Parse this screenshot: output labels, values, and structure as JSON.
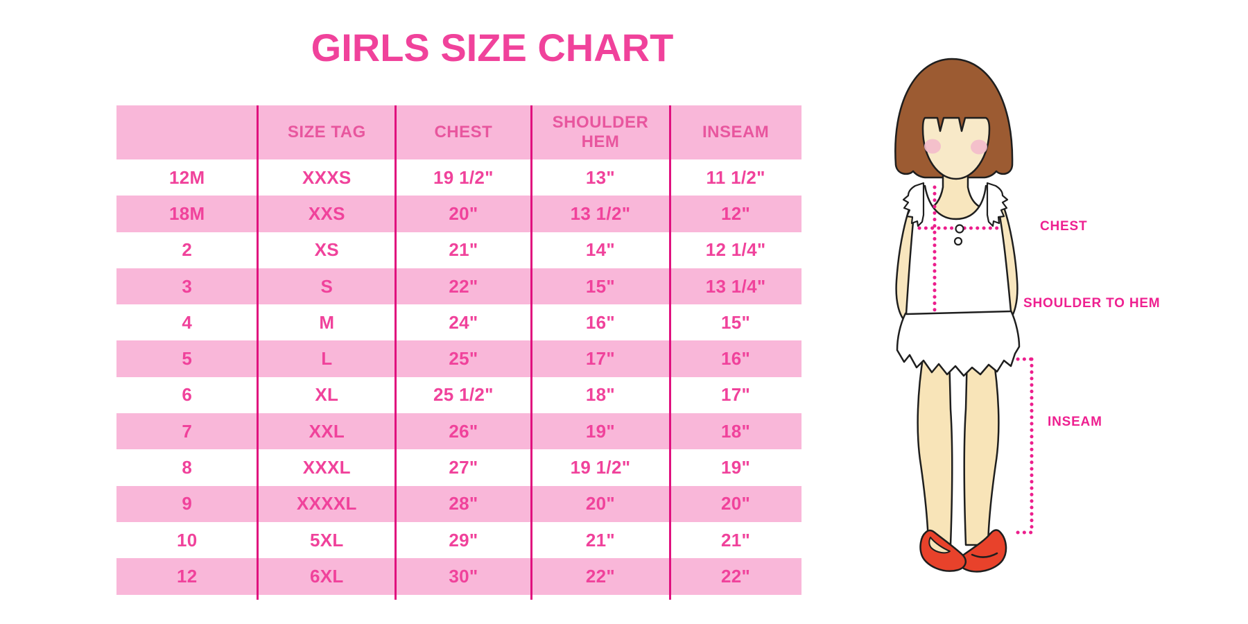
{
  "title": "GIRLS SIZE CHART",
  "chart_data": {
    "type": "table",
    "title": "GIRLS SIZE CHART",
    "columns": [
      "",
      "SIZE TAG",
      "CHEST",
      "SHOULDER HEM",
      "INSEAM"
    ],
    "rows": [
      [
        "12M",
        "XXXS",
        "19 1/2\"",
        "13\"",
        "11 1/2\""
      ],
      [
        "18M",
        "XXS",
        "20\"",
        "13 1/2\"",
        "12\""
      ],
      [
        "2",
        "XS",
        "21\"",
        "14\"",
        "12 1/4\""
      ],
      [
        "3",
        "S",
        "22\"",
        "15\"",
        "13 1/4\""
      ],
      [
        "4",
        "M",
        "24\"",
        "16\"",
        "15\""
      ],
      [
        "5",
        "L",
        "25\"",
        "17\"",
        "16\""
      ],
      [
        "6",
        "XL",
        "25 1/2\"",
        "18\"",
        "17\""
      ],
      [
        "7",
        "XXL",
        "26\"",
        "19\"",
        "18\""
      ],
      [
        "8",
        "XXXL",
        "27\"",
        "19 1/2\"",
        "19\""
      ],
      [
        "9",
        "XXXXL",
        "28\"",
        "20\"",
        "20\""
      ],
      [
        "10",
        "5XL",
        "29\"",
        "21\"",
        "21\""
      ],
      [
        "12",
        "6XL",
        "30\"",
        "22\"",
        "22\""
      ]
    ],
    "row_stripe_pattern": "alternating white/pink, first data row white",
    "grid": "vertical column separator lines only",
    "legend_position": "none"
  },
  "figure_labels": {
    "chest": "CHEST",
    "shoulder_to_hem": "SHOULDER TO HEM",
    "inseam": "INSEAM"
  },
  "colors": {
    "title_pink": "#F0429B",
    "row_pink": "#F9B7D9",
    "header_text_pink": "#E8569E",
    "cell_text_pink": "#F0429B",
    "column_line_magenta": "#E0107E",
    "dotted_line_magenta": "#EC1E8C",
    "label_pink": "#EE2090",
    "hair_brown": "#9C5B32",
    "skin": "#F8E6BE",
    "blush": "#F3BBCB",
    "shoe_red": "#E8422B",
    "outline": "#1E1E1E"
  }
}
